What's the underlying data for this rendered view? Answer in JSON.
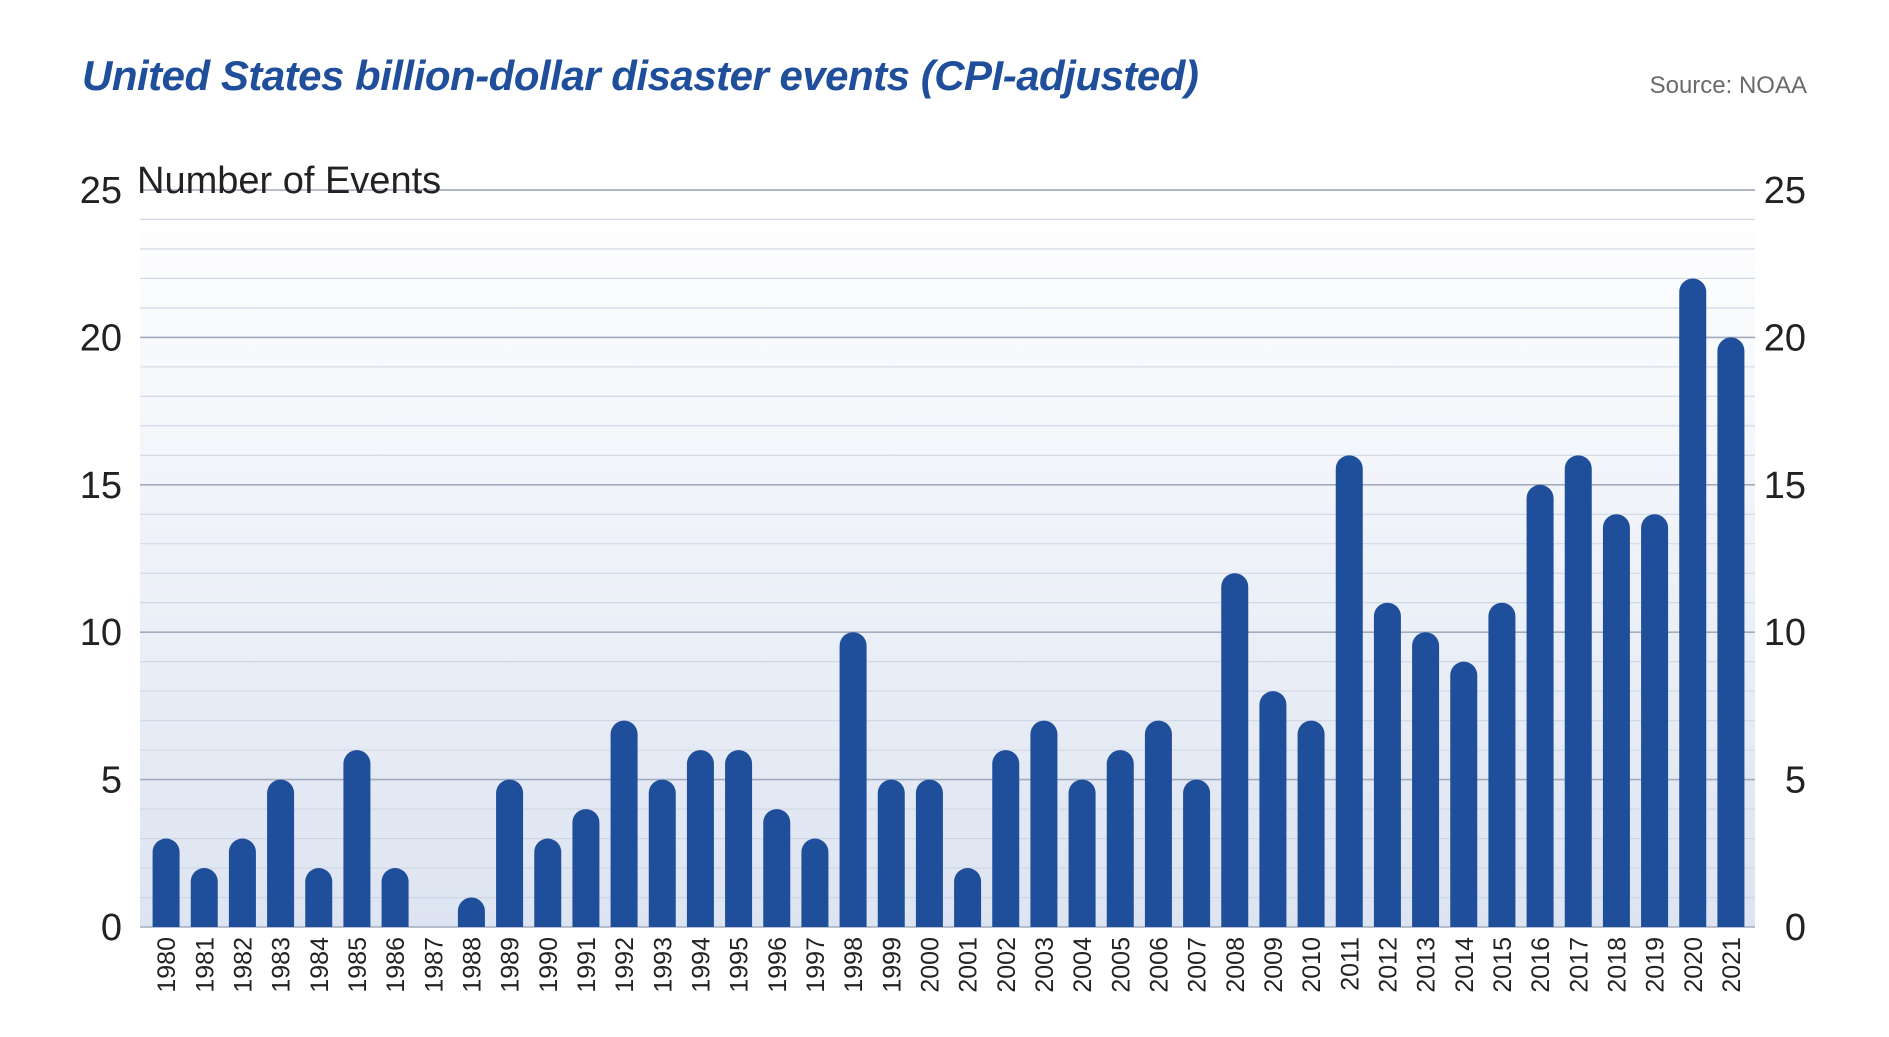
{
  "chart_data": {
    "type": "bar",
    "title": "United States billion-dollar disaster events (CPI-adjusted)",
    "source": "Source: NOAA",
    "ylabel": "Number of Events",
    "xlabel": "",
    "ylim": [
      0,
      25
    ],
    "yticks": [
      "0",
      "5",
      "10",
      "15",
      "20",
      "25"
    ],
    "categories": [
      "1980",
      "1981",
      "1982",
      "1983",
      "1984",
      "1985",
      "1986",
      "1987",
      "1988",
      "1989",
      "1990",
      "1991",
      "1992",
      "1993",
      "1994",
      "1995",
      "1996",
      "1997",
      "1998",
      "1999",
      "2000",
      "2001",
      "2002",
      "2003",
      "2004",
      "2005",
      "2006",
      "2007",
      "2008",
      "2009",
      "2010",
      "2011",
      "2012",
      "2013",
      "2014",
      "2015",
      "2016",
      "2017",
      "2018",
      "2019",
      "2020",
      "2021"
    ],
    "values": [
      3,
      2,
      3,
      5,
      2,
      6,
      2,
      0,
      1,
      5,
      3,
      4,
      7,
      5,
      6,
      6,
      4,
      3,
      10,
      5,
      5,
      2,
      6,
      7,
      5,
      6,
      7,
      5,
      12,
      8,
      7,
      16,
      11,
      10,
      9,
      11,
      15,
      16,
      14,
      14,
      22,
      20
    ],
    "bar_color": "#1f4e9a",
    "grid": true
  }
}
